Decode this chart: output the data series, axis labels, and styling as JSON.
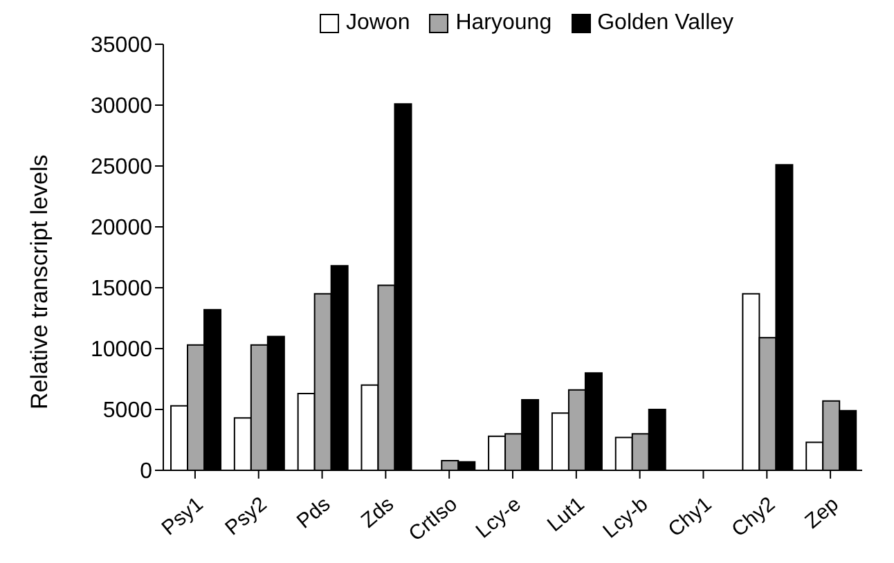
{
  "chart_data": {
    "type": "bar",
    "ylabel": "Relative transcript levels",
    "categories": [
      "Psy1",
      "Psy2",
      "Pds",
      "Zds",
      "CrtIso",
      "Lcy-e",
      "Lut1",
      "Lcy-b",
      "Chy1",
      "Chy2",
      "Zep"
    ],
    "series": [
      {
        "name": "Jowon",
        "color": "#ffffff",
        "values": [
          5300,
          4300,
          6300,
          7000,
          0,
          2800,
          4700,
          2700,
          0,
          14500,
          2300
        ]
      },
      {
        "name": "Haryoung",
        "color": "#a6a6a6",
        "values": [
          10300,
          10300,
          14500,
          15200,
          800,
          3000,
          6600,
          3000,
          0,
          10900,
          5700
        ]
      },
      {
        "name": "Golden Valley",
        "color": "#000000",
        "values": [
          13200,
          11000,
          16800,
          30100,
          700,
          5800,
          8000,
          5000,
          0,
          25100,
          4900
        ]
      }
    ],
    "ylim": [
      0,
      35000
    ],
    "yticks": [
      0,
      5000,
      10000,
      15000,
      20000,
      25000,
      30000,
      35000
    ],
    "grid": false,
    "legend": "top"
  }
}
